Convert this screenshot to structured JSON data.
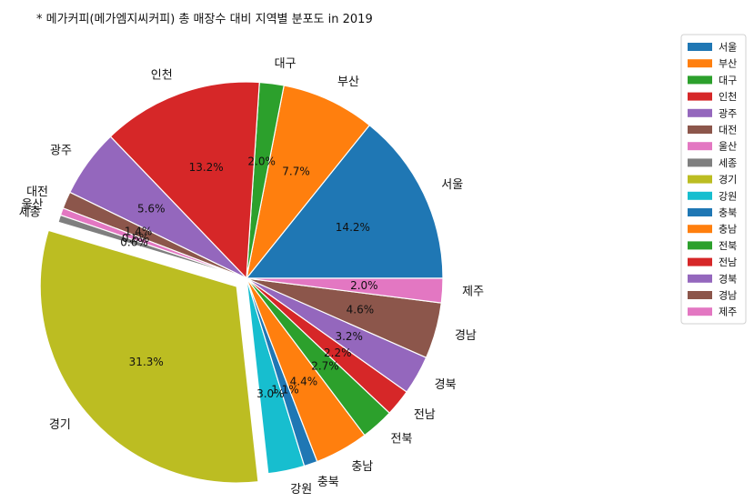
{
  "chart_data": {
    "type": "pie",
    "title": "* 메가커피(메가엠지씨커피) 총 매장수 대비 지역별 분포도 in 2019",
    "categories": [
      "서울",
      "부산",
      "대구",
      "인천",
      "광주",
      "대전",
      "울산",
      "세종",
      "경기",
      "강원",
      "충북",
      "충남",
      "전북",
      "전남",
      "경북",
      "경남",
      "제주"
    ],
    "values": [
      14.2,
      7.7,
      2.0,
      13.2,
      5.6,
      1.4,
      0.6,
      0.6,
      31.3,
      3.0,
      1.1,
      4.4,
      2.7,
      2.2,
      3.2,
      4.6,
      2.0
    ],
    "value_labels": [
      "14.2%",
      "7.7%",
      "2.0%",
      "13.2%",
      "5.6%",
      "1.4%",
      "0.6%",
      "0.6%",
      "31.3%",
      "3.0%",
      "1.1%",
      "4.4%",
      "2.7%",
      "2.2%",
      "3.2%",
      "4.6%",
      "2.0%"
    ],
    "colors": [
      "#1f77b4",
      "#ff7f0e",
      "#2ca02c",
      "#d62728",
      "#9467bd",
      "#8c564b",
      "#e377c2",
      "#7f7f7f",
      "#bcbd22",
      "#17becf",
      "#1f77b4",
      "#ff7f0e",
      "#2ca02c",
      "#d62728",
      "#9467bd",
      "#8c564b",
      "#e377c2"
    ],
    "exploded": [
      "경기"
    ],
    "start_angle_deg": 0,
    "direction": "counterclockwise",
    "legend": {
      "position": "right",
      "entries": [
        "서울",
        "부산",
        "대구",
        "인천",
        "광주",
        "대전",
        "울산",
        "세종",
        "경기",
        "강원",
        "충북",
        "충남",
        "전북",
        "전남",
        "경북",
        "경남",
        "제주"
      ]
    }
  }
}
